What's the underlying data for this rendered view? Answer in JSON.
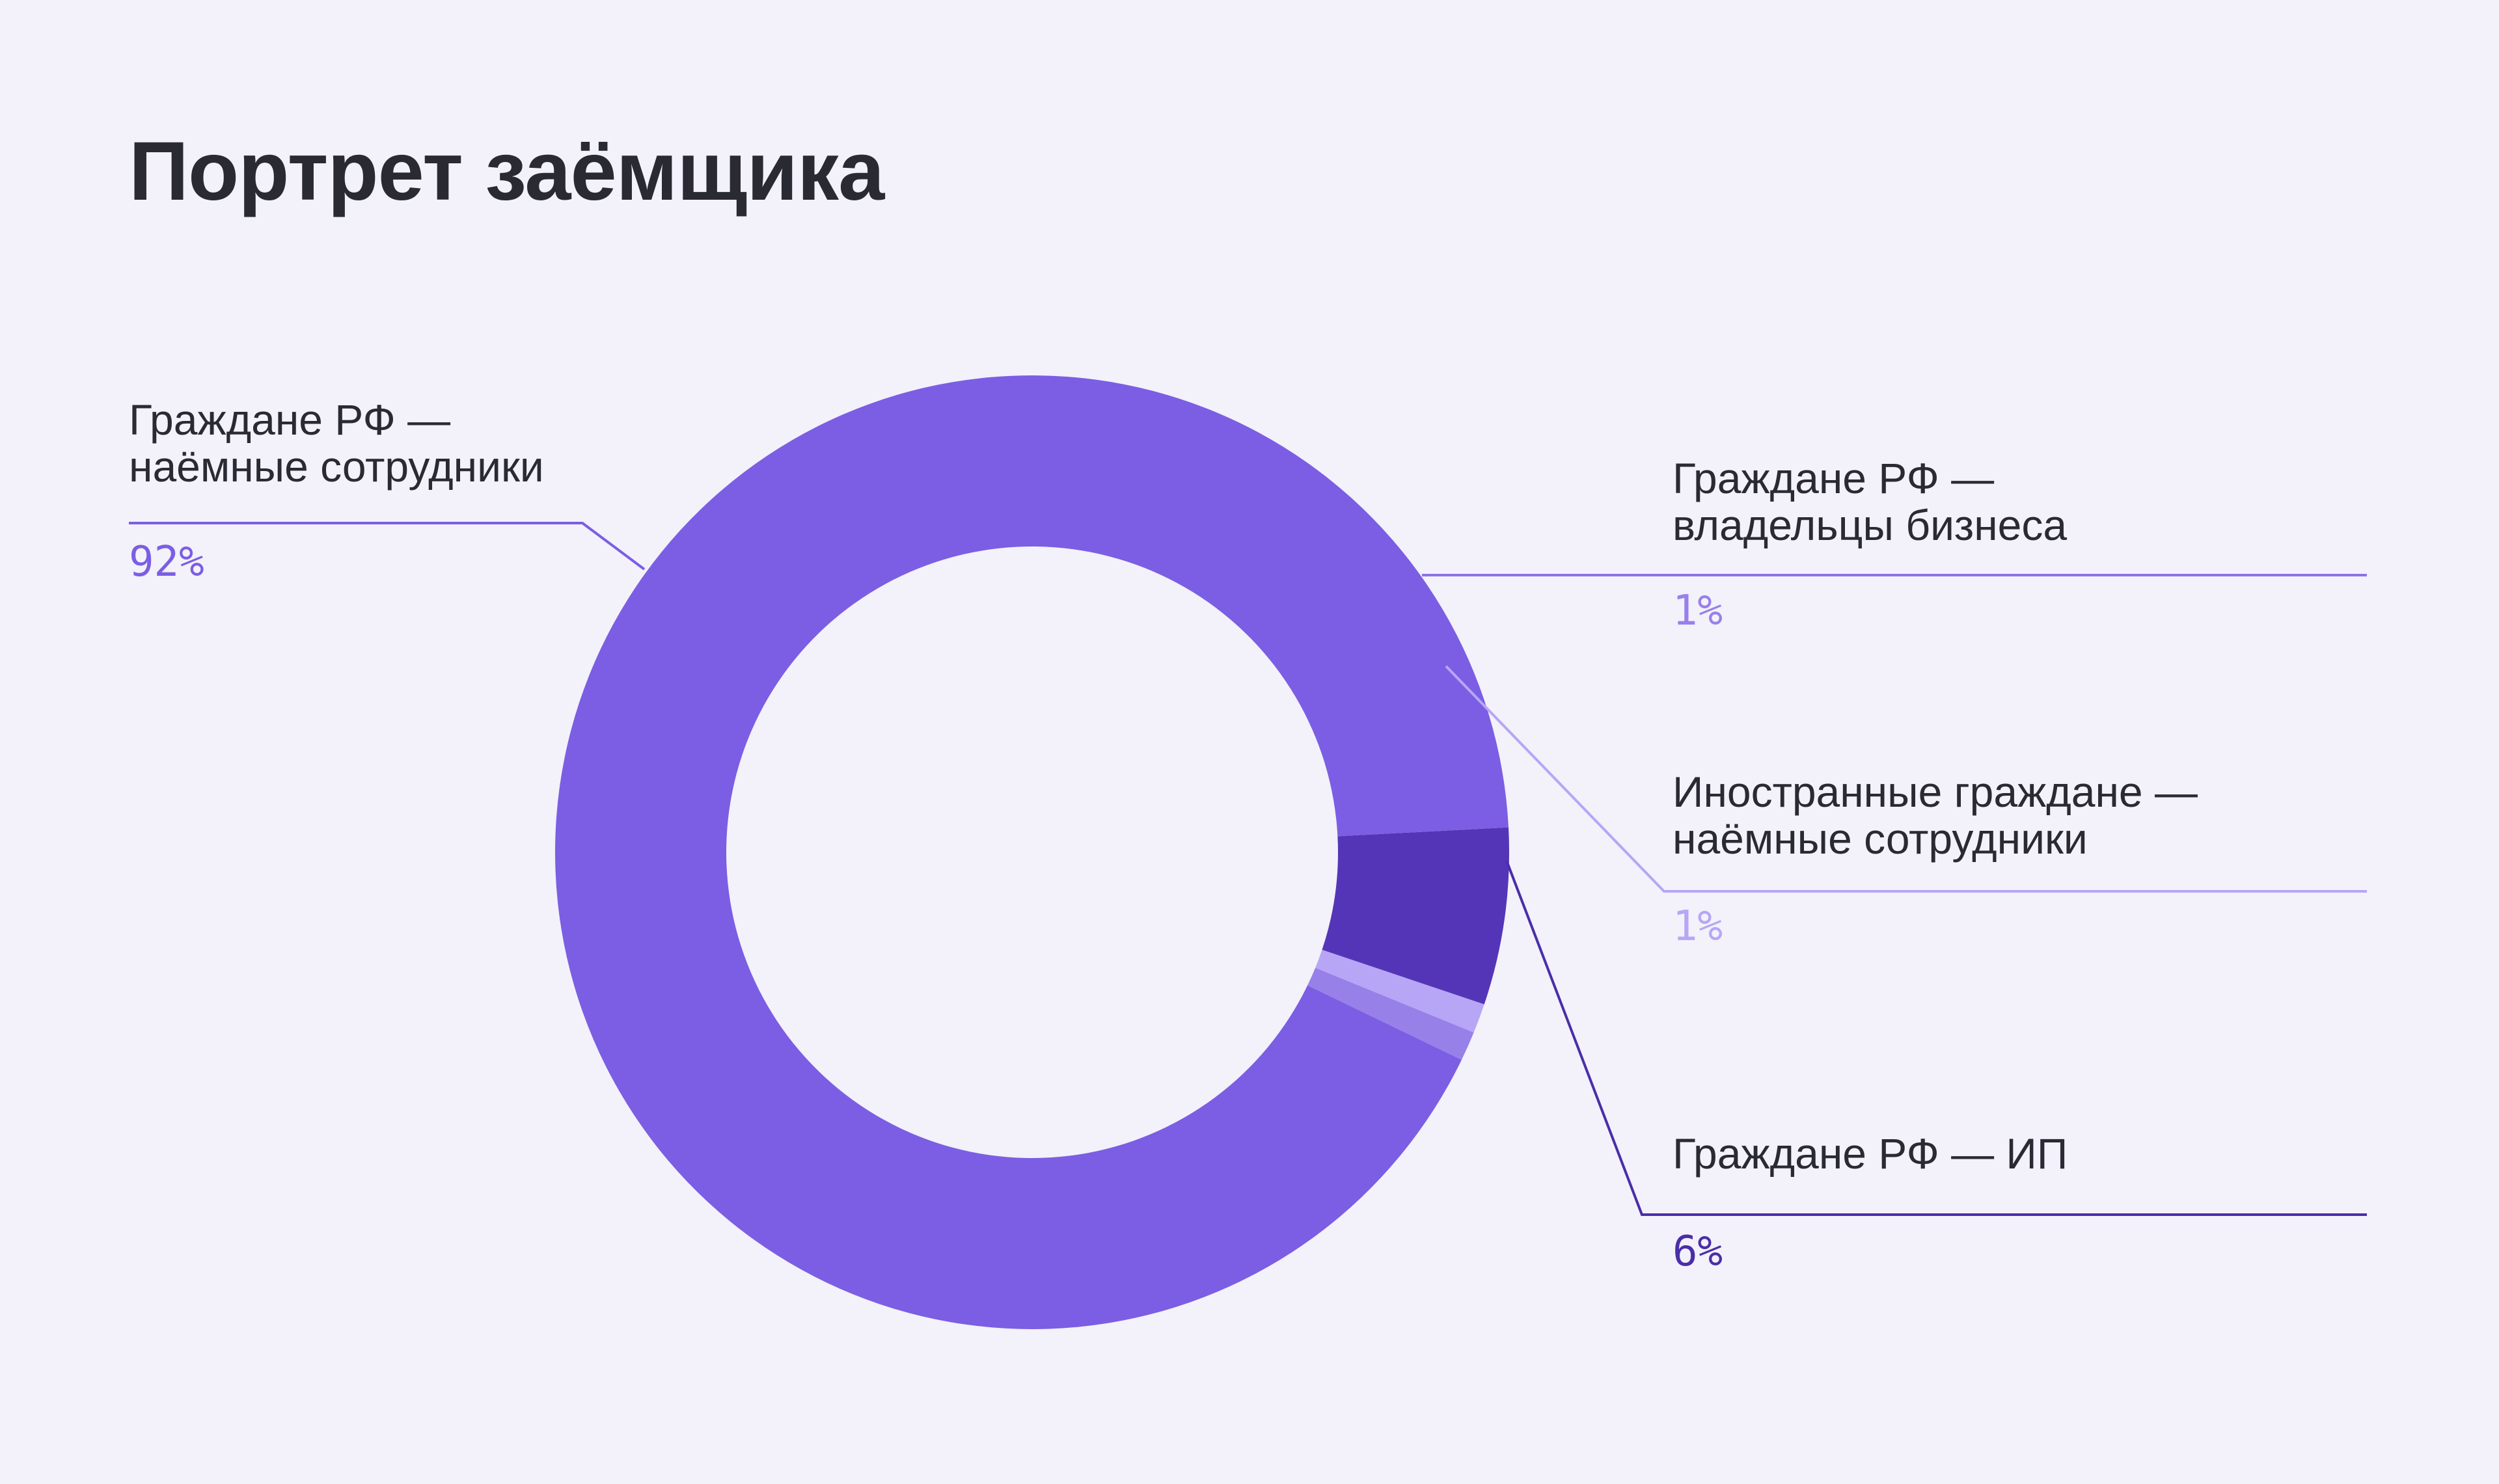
{
  "title": "Портрет заёмщика",
  "chart_data": {
    "type": "pie",
    "title": "Портрет заёмщика",
    "slices": [
      {
        "label_lines": [
          "Граждане РФ —",
          "наёмные сотрудники"
        ],
        "value": 92,
        "value_label": "92%",
        "color": "#7b5ee3",
        "label_color": "#7b5ee3",
        "leader_color": "#7b5ee3",
        "side": "left"
      },
      {
        "label_lines": [
          "Граждане РФ —",
          "владельцы бизнеса"
        ],
        "value": 1,
        "value_label": "1%",
        "color": "#9880e9",
        "label_color": "#9880e9",
        "leader_color": "#8c73e6",
        "side": "right"
      },
      {
        "label_lines": [
          "Иностранные граждане —",
          "наёмные сотрудники"
        ],
        "value": 1,
        "value_label": "1%",
        "color": "#b7a6f6",
        "label_color": "#b7a6f6",
        "leader_color": "#b7a6f6",
        "side": "right"
      },
      {
        "label_lines": [
          "Граждане РФ — ИП"
        ],
        "value": 6,
        "value_label": "6%",
        "color": "#5535b7",
        "label_color": "#4a2ea8",
        "leader_color": "#4a2ea8",
        "side": "right"
      }
    ]
  }
}
